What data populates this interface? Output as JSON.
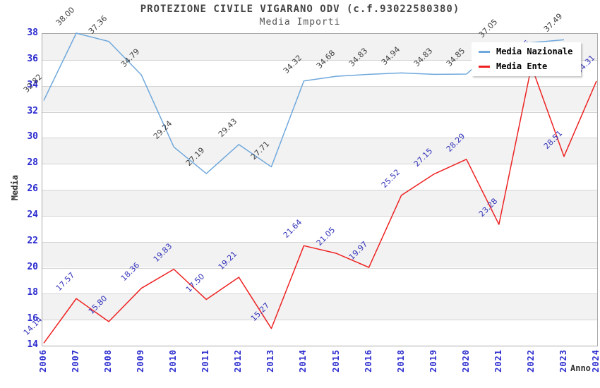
{
  "header": {
    "title": "PROTEZIONE CIVILE VIGARANO ODV (c.f.93022580380)",
    "subtitle": "Media Importi"
  },
  "legend": {
    "items": [
      {
        "label": "Media Nazionale",
        "color": "#6FA8DC"
      },
      {
        "label": "Media Ente",
        "color": "#EE2222"
      }
    ]
  },
  "chart_data": {
    "type": "line",
    "title": "PROTEZIONE CIVILE VIGARANO ODV (c.f.93022580380)",
    "subtitle": "Media Importi",
    "xlabel": "Anno",
    "ylabel": "Media",
    "ylim": [
      14,
      38
    ],
    "yticks": [
      14,
      16,
      18,
      20,
      22,
      24,
      26,
      28,
      30,
      32,
      34,
      36,
      38
    ],
    "grid": "horizontal-gridlines-with-alternating-gray-bands",
    "legend_position": "top-right-overlapping-plot",
    "categories": [
      "2006",
      "2007",
      "2008",
      "2009",
      "2010",
      "2011",
      "2012",
      "2013",
      "2014",
      "2015",
      "2016",
      "2018",
      "2019",
      "2020",
      "2021",
      "2022",
      "2023",
      "2024"
    ],
    "series": [
      {
        "name": "Media Nazionale",
        "color": "#6FA8DC",
        "label_color": "#404040",
        "values": [
          32.82,
          38.0,
          37.36,
          34.79,
          29.24,
          27.19,
          29.43,
          27.71,
          34.32,
          34.68,
          34.83,
          34.94,
          34.83,
          34.85,
          37.05,
          null,
          37.49,
          null
        ]
      },
      {
        "name": "Media Ente",
        "color": "#EE2222",
        "label_color": "#3333BB",
        "values": [
          14.14,
          17.57,
          15.8,
          18.36,
          19.83,
          17.5,
          19.21,
          15.27,
          21.64,
          21.05,
          19.97,
          25.52,
          27.15,
          28.29,
          23.28,
          35.46,
          28.51,
          34.31
        ]
      }
    ],
    "note_colors": {
      "tick_label_color": "#2B2BCF",
      "band_gray": "#F2F2F2",
      "gridline": "#D4D4D4",
      "plot_border": "#AAAAAA"
    }
  }
}
